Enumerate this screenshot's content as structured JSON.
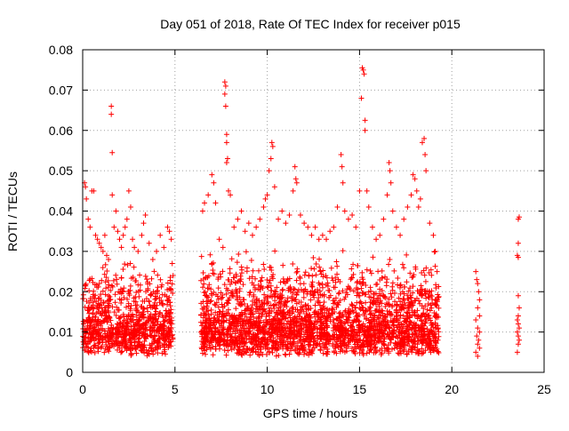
{
  "chart_data": {
    "type": "scatter",
    "title": "Day 051 of 2018, Rate Of TEC Index for receiver p015",
    "xlabel": "GPS time / hours",
    "ylabel": "ROTI / TECUs",
    "xlim": [
      0,
      25
    ],
    "ylim": [
      0,
      0.08
    ],
    "xticks": [
      0,
      5,
      10,
      15,
      20,
      25
    ],
    "xtick_labels": [
      "0",
      "5",
      "10",
      "15",
      "20",
      "25"
    ],
    "yticks": [
      0,
      0.01,
      0.02,
      0.03,
      0.04,
      0.05,
      0.06,
      0.07,
      0.08
    ],
    "ytick_labels": [
      "0",
      "0.01",
      "0.02",
      "0.03",
      "0.04",
      "0.05",
      "0.06",
      "0.07",
      "0.08"
    ],
    "grid": true,
    "marker": "+",
    "color": "#ff0000",
    "series": [
      {
        "name": "ROTI",
        "points": [
          [
            0.05,
            0.012
          ],
          [
            0.1,
            0.047
          ],
          [
            0.15,
            0.046
          ],
          [
            0.2,
            0.043
          ],
          [
            0.3,
            0.038
          ],
          [
            0.4,
            0.036
          ],
          [
            0.5,
            0.045
          ],
          [
            0.6,
            0.045
          ],
          [
            0.7,
            0.034
          ],
          [
            0.8,
            0.033
          ],
          [
            0.9,
            0.032
          ],
          [
            1.0,
            0.031
          ],
          [
            1.1,
            0.03
          ],
          [
            1.2,
            0.034
          ],
          [
            1.3,
            0.029
          ],
          [
            1.4,
            0.028
          ],
          [
            1.55,
            0.066
          ],
          [
            1.55,
            0.064
          ],
          [
            1.6,
            0.0545
          ],
          [
            1.6,
            0.044
          ],
          [
            1.7,
            0.036
          ],
          [
            1.8,
            0.04
          ],
          [
            1.9,
            0.035
          ],
          [
            2.0,
            0.033
          ],
          [
            2.1,
            0.031
          ],
          [
            2.2,
            0.034
          ],
          [
            2.3,
            0.036
          ],
          [
            2.4,
            0.038
          ],
          [
            2.5,
            0.045
          ],
          [
            2.6,
            0.041
          ],
          [
            2.7,
            0.033
          ],
          [
            2.8,
            0.031
          ],
          [
            3.0,
            0.03
          ],
          [
            3.2,
            0.034
          ],
          [
            3.3,
            0.037
          ],
          [
            3.4,
            0.039
          ],
          [
            3.6,
            0.032
          ],
          [
            3.8,
            0.028
          ],
          [
            4.0,
            0.03
          ],
          [
            4.2,
            0.034
          ],
          [
            4.4,
            0.031
          ],
          [
            4.6,
            0.036
          ],
          [
            4.7,
            0.035
          ],
          [
            4.8,
            0.033
          ],
          [
            4.85,
            0.027
          ],
          [
            4.9,
            0.024
          ],
          [
            6.5,
            0.04
          ],
          [
            6.6,
            0.042
          ],
          [
            6.8,
            0.044
          ],
          [
            7.0,
            0.049
          ],
          [
            7.1,
            0.047
          ],
          [
            7.2,
            0.042
          ],
          [
            7.4,
            0.033
          ],
          [
            7.6,
            0.031
          ],
          [
            7.7,
            0.072
          ],
          [
            7.75,
            0.071
          ],
          [
            7.7,
            0.069
          ],
          [
            7.75,
            0.066
          ],
          [
            7.8,
            0.059
          ],
          [
            7.8,
            0.057
          ],
          [
            7.85,
            0.053
          ],
          [
            7.8,
            0.052
          ],
          [
            7.9,
            0.045
          ],
          [
            8.0,
            0.044
          ],
          [
            8.2,
            0.036
          ],
          [
            8.4,
            0.038
          ],
          [
            8.6,
            0.04
          ],
          [
            8.8,
            0.035
          ],
          [
            9.0,
            0.037
          ],
          [
            9.2,
            0.034
          ],
          [
            9.4,
            0.036
          ],
          [
            9.6,
            0.038
          ],
          [
            9.8,
            0.041
          ],
          [
            9.9,
            0.043
          ],
          [
            10.0,
            0.044
          ],
          [
            10.1,
            0.05
          ],
          [
            10.2,
            0.053
          ],
          [
            10.25,
            0.057
          ],
          [
            10.3,
            0.056
          ],
          [
            10.4,
            0.046
          ],
          [
            10.6,
            0.038
          ],
          [
            10.8,
            0.04
          ],
          [
            11.0,
            0.037
          ],
          [
            11.2,
            0.039
          ],
          [
            11.4,
            0.045
          ],
          [
            11.5,
            0.051
          ],
          [
            11.55,
            0.048
          ],
          [
            11.6,
            0.047
          ],
          [
            11.8,
            0.039
          ],
          [
            12.0,
            0.037
          ],
          [
            12.2,
            0.036
          ],
          [
            12.4,
            0.034
          ],
          [
            12.6,
            0.036
          ],
          [
            12.8,
            0.033
          ],
          [
            13.0,
            0.034
          ],
          [
            13.2,
            0.033
          ],
          [
            13.4,
            0.035
          ],
          [
            13.6,
            0.036
          ],
          [
            13.8,
            0.041
          ],
          [
            14.0,
            0.054
          ],
          [
            14.05,
            0.051
          ],
          [
            14.1,
            0.047
          ],
          [
            14.2,
            0.04
          ],
          [
            14.4,
            0.038
          ],
          [
            14.6,
            0.039
          ],
          [
            14.8,
            0.036
          ],
          [
            15.0,
            0.045
          ],
          [
            15.1,
            0.068
          ],
          [
            15.15,
            0.0755
          ],
          [
            15.2,
            0.075
          ],
          [
            15.25,
            0.074
          ],
          [
            15.3,
            0.0625
          ],
          [
            15.3,
            0.06
          ],
          [
            15.4,
            0.045
          ],
          [
            15.5,
            0.041
          ],
          [
            15.7,
            0.036
          ],
          [
            15.9,
            0.033
          ],
          [
            16.1,
            0.034
          ],
          [
            16.3,
            0.038
          ],
          [
            16.5,
            0.044
          ],
          [
            16.6,
            0.052
          ],
          [
            16.65,
            0.05
          ],
          [
            16.7,
            0.047
          ],
          [
            16.8,
            0.04
          ],
          [
            17.0,
            0.036
          ],
          [
            17.2,
            0.034
          ],
          [
            17.4,
            0.038
          ],
          [
            17.6,
            0.041
          ],
          [
            17.8,
            0.044
          ],
          [
            17.9,
            0.049
          ],
          [
            18.0,
            0.048
          ],
          [
            18.1,
            0.045
          ],
          [
            18.2,
            0.041
          ],
          [
            18.3,
            0.043
          ],
          [
            18.4,
            0.057
          ],
          [
            18.5,
            0.058
          ],
          [
            18.55,
            0.054
          ],
          [
            18.6,
            0.05
          ],
          [
            18.8,
            0.037
          ],
          [
            19.0,
            0.034
          ],
          [
            19.1,
            0.03
          ],
          [
            19.2,
            0.025
          ],
          [
            21.3,
            0.025
          ],
          [
            21.35,
            0.023
          ],
          [
            21.4,
            0.022
          ],
          [
            21.45,
            0.02
          ],
          [
            21.5,
            0.018
          ],
          [
            21.4,
            0.016
          ],
          [
            21.5,
            0.014
          ],
          [
            21.3,
            0.013
          ],
          [
            21.4,
            0.011
          ],
          [
            21.5,
            0.01
          ],
          [
            21.35,
            0.009
          ],
          [
            21.45,
            0.008
          ],
          [
            21.4,
            0.007
          ],
          [
            21.5,
            0.006
          ],
          [
            21.3,
            0.005
          ],
          [
            21.4,
            0.004
          ],
          [
            23.6,
            0.038
          ],
          [
            23.65,
            0.0385
          ],
          [
            23.6,
            0.032
          ],
          [
            23.55,
            0.029
          ],
          [
            23.6,
            0.0285
          ],
          [
            23.6,
            0.019
          ],
          [
            23.65,
            0.016
          ],
          [
            23.6,
            0.014
          ],
          [
            23.55,
            0.013
          ],
          [
            23.6,
            0.012
          ],
          [
            23.65,
            0.011
          ],
          [
            23.55,
            0.01
          ],
          [
            23.6,
            0.009
          ],
          [
            23.65,
            0.008
          ],
          [
            23.6,
            0.007
          ],
          [
            23.55,
            0.005
          ]
        ],
        "dense_bands": [
          {
            "x_start": 0.0,
            "x_end": 4.9,
            "y_low": 0.004,
            "y_high": 0.024,
            "count": 900
          },
          {
            "x_start": 6.4,
            "x_end": 19.3,
            "y_low": 0.004,
            "y_high": 0.026,
            "count": 2600
          }
        ]
      }
    ]
  }
}
